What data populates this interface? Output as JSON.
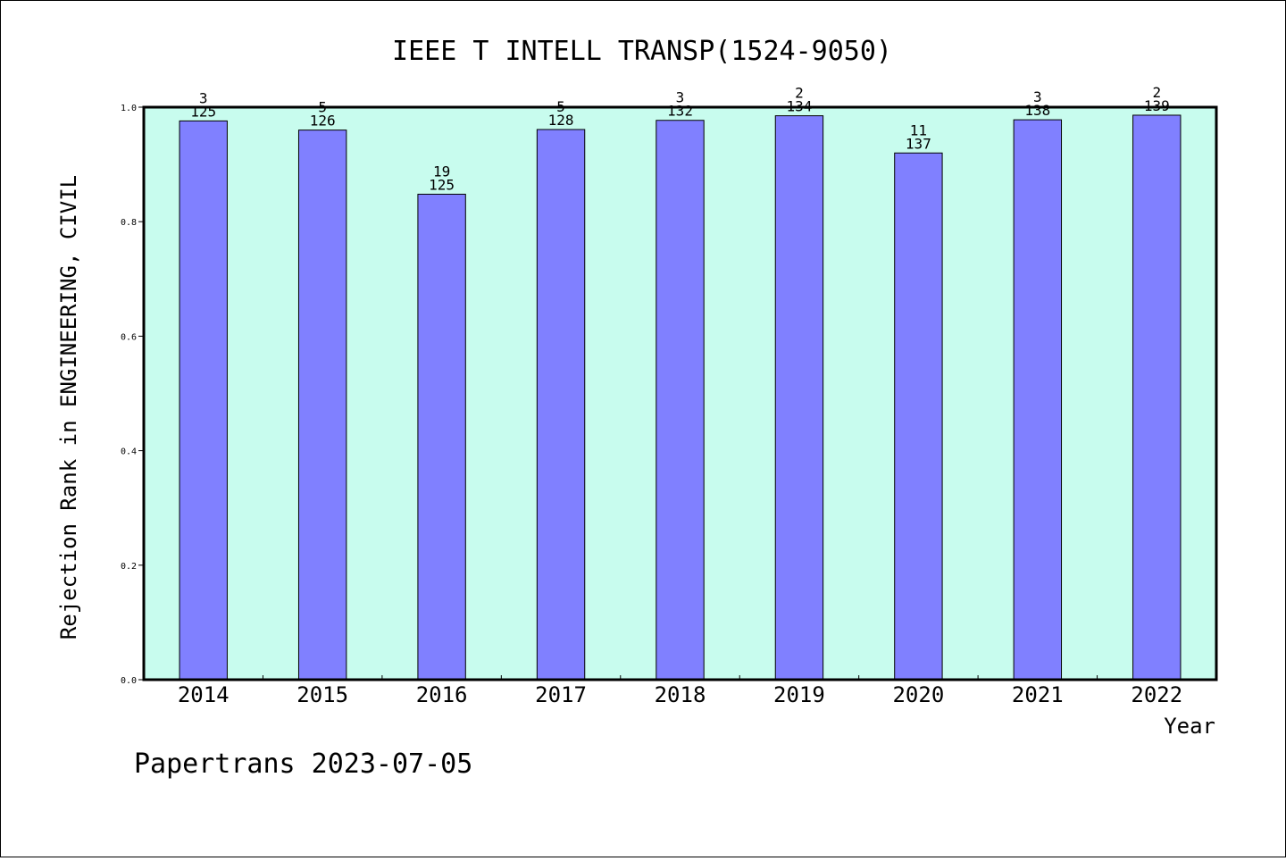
{
  "chart_data": {
    "type": "bar",
    "title": "IEEE T INTELL TRANSP(1524-9050)",
    "xlabel": "Year",
    "ylabel": "Rejection Rank in ENGINEERING, CIVIL",
    "categories": [
      "2014",
      "2015",
      "2016",
      "2017",
      "2018",
      "2019",
      "2020",
      "2021",
      "2022"
    ],
    "values": [
      0.976,
      0.96,
      0.848,
      0.961,
      0.977,
      0.985,
      0.92,
      0.978,
      0.986
    ],
    "rank_labels": [
      "3",
      "5",
      "19",
      "5",
      "3",
      "2",
      "11",
      "3",
      "2"
    ],
    "total_labels": [
      "125",
      "126",
      "125",
      "128",
      "132",
      "134",
      "137",
      "138",
      "139"
    ],
    "yticks": [
      "0.0",
      "0.2",
      "0.4",
      "0.6",
      "0.8",
      "1.0"
    ],
    "ylim": [
      0,
      1
    ],
    "grid": false,
    "colors": {
      "plot_bg": "#c8fcee",
      "bar": "#8080ff",
      "axis": "#000000"
    }
  },
  "footer": {
    "text": "Papertrans 2023-07-05"
  }
}
